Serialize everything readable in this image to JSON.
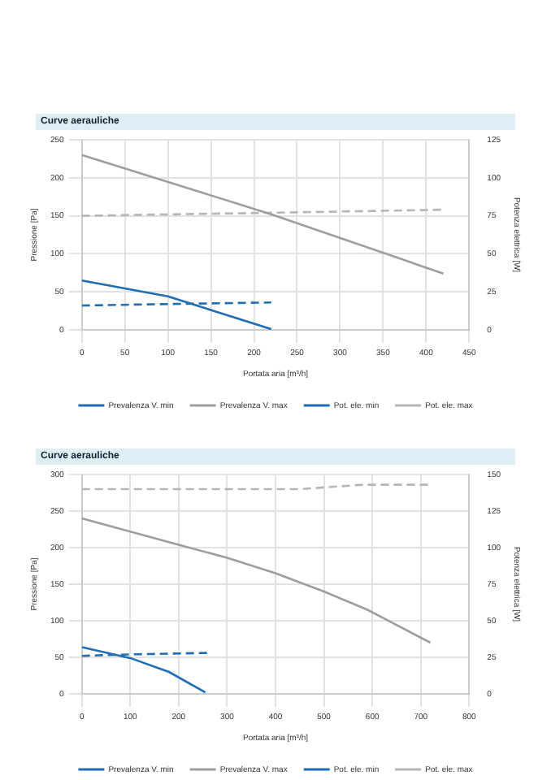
{
  "chart_data": [
    {
      "type": "line",
      "title": "Curve aerauliche",
      "xlabel": "Portata aria [m³/h]",
      "ylabel": "Pressione [Pa]",
      "y2label": "Potenza elettrica [W]",
      "xlim": [
        0,
        450
      ],
      "xticks": [
        0,
        50,
        100,
        150,
        200,
        250,
        300,
        350,
        400,
        450
      ],
      "ylim": [
        0,
        250
      ],
      "yticks": [
        0,
        50,
        100,
        150,
        200,
        250
      ],
      "y2lim": [
        0,
        125
      ],
      "y2ticks": [
        0,
        25,
        50,
        75,
        100,
        125
      ],
      "grid": true,
      "legend": "bottom",
      "marker": "none",
      "series": [
        {
          "name": "Prevalenza V. min",
          "color": "#1f6db3",
          "x": [
            0,
            100,
            220
          ],
          "values": [
            65,
            44,
            1
          ]
        },
        {
          "name": "Prevalenza V. max",
          "color": "#9e9e9e",
          "x": [
            0,
            220,
            420
          ],
          "values": [
            230,
            152,
            74
          ]
        },
        {
          "name": "Pot. ele. min",
          "color": "#1f6db3",
          "axis": "y2",
          "line_style": "dashed",
          "x": [
            0,
            100,
            220
          ],
          "values": [
            16,
            17,
            18
          ]
        },
        {
          "name": "Pot. ele. max",
          "color": "#b5b5b5",
          "axis": "y2",
          "line_style": "dashed",
          "x": [
            0,
            220,
            420
          ],
          "values": [
            75,
            77,
            79
          ]
        }
      ]
    },
    {
      "type": "line",
      "title": "Curve aerauliche",
      "xlabel": "Portata aria [m³/h]",
      "ylabel": "Pressione [Pa]",
      "y2label": "Potenza elettrica [W]",
      "xlim": [
        0,
        800
      ],
      "xticks": [
        0,
        100,
        200,
        300,
        400,
        500,
        600,
        700,
        800
      ],
      "ylim": [
        0,
        300
      ],
      "yticks": [
        0,
        50,
        100,
        150,
        200,
        250,
        300
      ],
      "y2lim": [
        0,
        150
      ],
      "y2ticks": [
        0,
        25,
        50,
        75,
        100,
        125,
        150
      ],
      "grid": true,
      "legend": "bottom",
      "marker": "none",
      "series": [
        {
          "name": "Prevalenza V. min",
          "color": "#1f6db3",
          "x": [
            0,
            100,
            180,
            255
          ],
          "values": [
            64,
            49,
            30,
            2
          ]
        },
        {
          "name": "Prevalenza V. max",
          "color": "#9e9e9e",
          "x": [
            0,
            100,
            200,
            300,
            400,
            500,
            590,
            720
          ],
          "values": [
            240,
            222,
            204,
            186,
            165,
            140,
            115,
            70
          ]
        },
        {
          "name": "Pot. ele. min",
          "color": "#1f6db3",
          "axis": "y2",
          "line_style": "dashed",
          "x": [
            0,
            100,
            260
          ],
          "values": [
            26,
            27,
            28
          ]
        },
        {
          "name": "Pot. ele. max",
          "color": "#b5b5b5",
          "axis": "y2",
          "line_style": "dashed",
          "x": [
            0,
            450,
            580,
            720
          ],
          "values": [
            140,
            140,
            143,
            143
          ]
        }
      ]
    }
  ]
}
